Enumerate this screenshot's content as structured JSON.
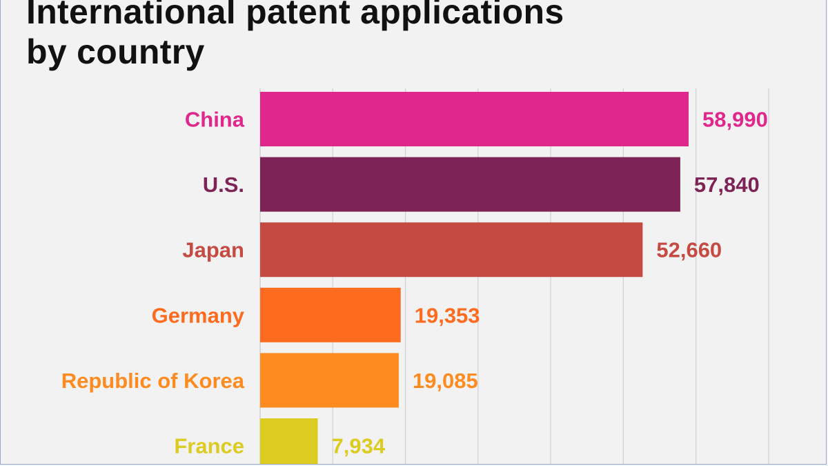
{
  "title_lines": [
    "International patent applications",
    "by country"
  ],
  "chart_data": {
    "type": "bar",
    "orientation": "horizontal",
    "title": "International patent applications by country",
    "categories": [
      "China",
      "U.S.",
      "Japan",
      "Germany",
      "Republic of Korea",
      "France"
    ],
    "values": [
      58990,
      57840,
      52660,
      19353,
      19085,
      7934
    ],
    "value_labels": [
      "58,990",
      "57,840",
      "52,660",
      "19,353",
      "19,085",
      "7,934"
    ],
    "colors": [
      "#e0288c",
      "#7e2355",
      "#c44a42",
      "#fd6b1f",
      "#fd8b20",
      "#dccb20"
    ],
    "xlim": [
      0,
      70000
    ],
    "x_gridline_step": 10000,
    "grid": true,
    "legend": "none",
    "xlabel": "",
    "ylabel": ""
  }
}
